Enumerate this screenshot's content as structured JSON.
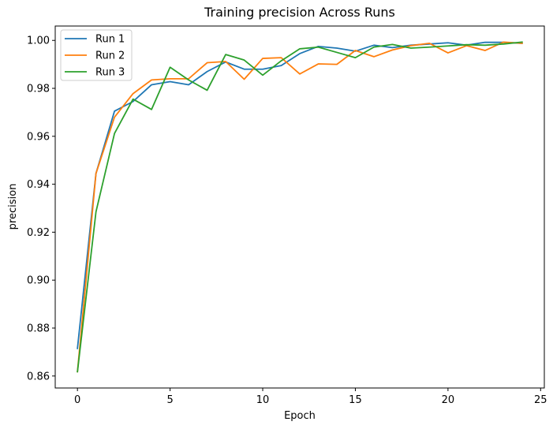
{
  "chart_data": {
    "type": "line",
    "title": "Training precision Across Runs",
    "xlabel": "Epoch",
    "ylabel": "precision",
    "xlim": [
      -1.2,
      25.2
    ],
    "ylim": [
      0.855,
      1.006
    ],
    "xticks": [
      0,
      5,
      10,
      15,
      20,
      25
    ],
    "yticks": [
      0.86,
      0.88,
      0.9,
      0.92,
      0.94,
      0.96,
      0.98,
      1.0
    ],
    "legend": "top-left",
    "grid": false,
    "x": [
      0,
      1,
      2,
      3,
      4,
      5,
      6,
      7,
      8,
      9,
      10,
      11,
      12,
      13,
      14,
      15,
      16,
      17,
      18,
      19,
      20,
      21,
      22,
      23,
      24
    ],
    "series": [
      {
        "name": "Run 1",
        "color": "#1f77b4",
        "values": [
          0.8715,
          0.9445,
          0.9705,
          0.9745,
          0.9815,
          0.9828,
          0.9815,
          0.987,
          0.991,
          0.988,
          0.988,
          0.9895,
          0.9945,
          0.9975,
          0.9968,
          0.9955,
          0.998,
          0.997,
          0.998,
          0.9985,
          0.999,
          0.998,
          0.9992,
          0.9992,
          0.9988
        ]
      },
      {
        "name": "Run 2",
        "color": "#ff7f0e",
        "values": [
          0.8618,
          0.9445,
          0.968,
          0.9778,
          0.9835,
          0.984,
          0.984,
          0.9907,
          0.9912,
          0.9838,
          0.9925,
          0.9928,
          0.986,
          0.9902,
          0.99,
          0.9958,
          0.9932,
          0.996,
          0.9978,
          0.9988,
          0.9948,
          0.9978,
          0.9958,
          0.9993,
          0.9988
        ]
      },
      {
        "name": "Run 3",
        "color": "#2ca02c",
        "values": [
          0.8618,
          0.9285,
          0.9612,
          0.9755,
          0.9712,
          0.9888,
          0.9835,
          0.9792,
          0.9941,
          0.9918,
          0.9855,
          0.9915,
          0.9965,
          0.9972,
          0.995,
          0.9928,
          0.9972,
          0.9983,
          0.9968,
          0.9972,
          0.9977,
          0.9982,
          0.998,
          0.9985,
          0.9993
        ]
      }
    ]
  }
}
